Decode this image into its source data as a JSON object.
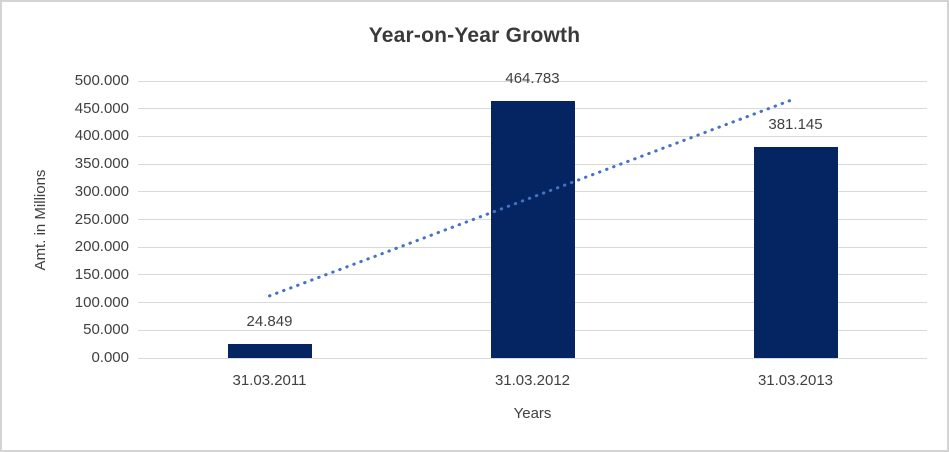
{
  "title": "Year-on-Year Growth",
  "axes": {
    "y_title": "Amt. in Millions",
    "x_title": "Years"
  },
  "colors": {
    "bar": "#042462",
    "trendline": "#4472c4",
    "gridline": "#d9d9d9",
    "text": "#404040",
    "title_text": "#3a3a3a",
    "frame_border": "#d4d4d4"
  },
  "chart_data": {
    "type": "bar",
    "title": "Year-on-Year Growth",
    "xlabel": "Years",
    "ylabel": "Amt. in Millions",
    "categories": [
      "31.03.2011",
      "31.03.2012",
      "31.03.2013"
    ],
    "values": [
      24849,
      464783,
      381145
    ],
    "value_labels": [
      "24.849",
      "464.783",
      "381.145"
    ],
    "ylim": [
      0,
      500000
    ],
    "y_ticks": [
      {
        "value": 0,
        "label": "0.000"
      },
      {
        "value": 50000,
        "label": "50.000"
      },
      {
        "value": 100000,
        "label": "100.000"
      },
      {
        "value": 150000,
        "label": "150.000"
      },
      {
        "value": 200000,
        "label": "200.000"
      },
      {
        "value": 250000,
        "label": "250.000"
      },
      {
        "value": 300000,
        "label": "300.000"
      },
      {
        "value": 350000,
        "label": "350.000"
      },
      {
        "value": 400000,
        "label": "400.000"
      },
      {
        "value": 450000,
        "label": "450.000"
      },
      {
        "value": 500000,
        "label": "500.000"
      }
    ],
    "grid": "horizontal",
    "legend": "none",
    "trendline": {
      "type": "linear",
      "style": "dotted"
    }
  }
}
